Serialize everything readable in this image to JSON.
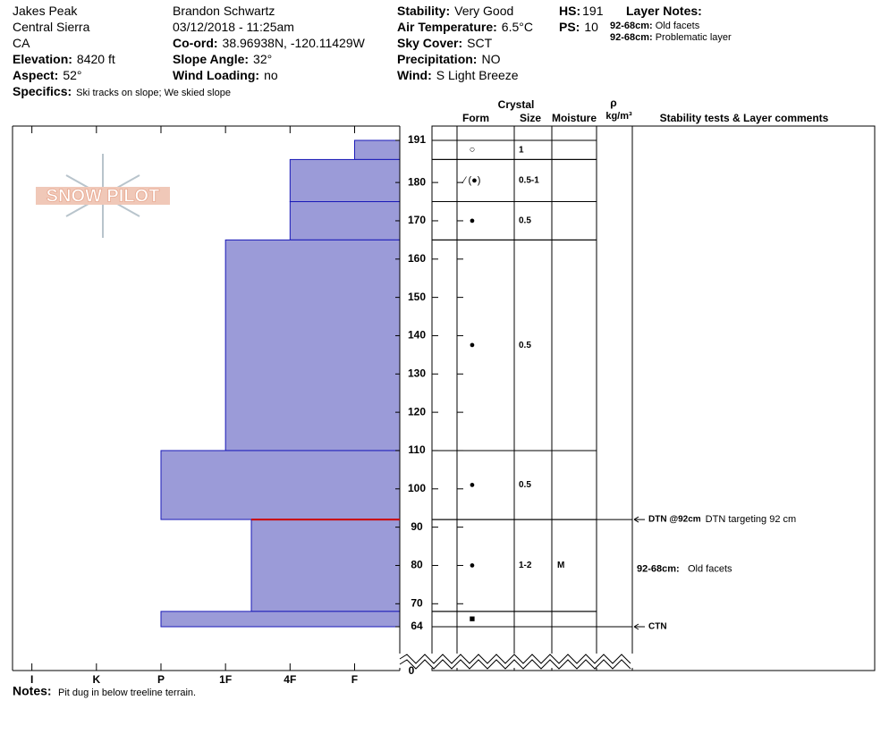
{
  "header": {
    "location": [
      "Jakes Peak",
      "Central Sierra",
      "CA"
    ],
    "elevation": {
      "label": "Elevation:",
      "value": "8420 ft"
    },
    "aspect": {
      "label": "Aspect:",
      "value": "52°"
    },
    "specifics": {
      "label": "Specifics:",
      "value": "Ski tracks on slope; We skied slope"
    },
    "observer": "Brandon Schwartz",
    "datetime": "03/12/2018 - 11:25am",
    "coord": {
      "label": "Co-ord:",
      "value": "38.96938N, -120.11429W"
    },
    "slope_angle": {
      "label": "Slope Angle:",
      "value": "32°"
    },
    "wind_loading": {
      "label": "Wind Loading:",
      "value": "no"
    },
    "stability": {
      "label": "Stability:",
      "value": "Very Good"
    },
    "air_temperature": {
      "label": "Air Temperature:",
      "value": "6.5°C"
    },
    "sky_cover": {
      "label": "Sky Cover:",
      "value": "SCT"
    },
    "precipitation": {
      "label": "Precipitation:",
      "value": "NO"
    },
    "wind": {
      "label": "Wind:",
      "value": "S Light Breeze"
    },
    "hs": {
      "label": "HS:",
      "value": "191"
    },
    "ps": {
      "label": "PS:",
      "value": "10"
    },
    "layer_notes": {
      "title": "Layer Notes:",
      "items": [
        {
          "label": "92-68cm:",
          "text": "Old facets"
        },
        {
          "label": "92-68cm:",
          "text": "Problematic layer"
        }
      ]
    }
  },
  "logo": "SNOW PILOT",
  "chart_data": {
    "type": "snow-profile",
    "ylim": [
      64,
      191
    ],
    "yticks": [
      64,
      70,
      80,
      90,
      100,
      110,
      120,
      130,
      140,
      150,
      160,
      170,
      180,
      191
    ],
    "axis_break_tick": 0,
    "xlim": [
      6.3,
      0.3
    ],
    "xticks": [
      {
        "value": 6,
        "label": "I"
      },
      {
        "value": 5,
        "label": "K"
      },
      {
        "value": 4,
        "label": "P"
      },
      {
        "value": 3,
        "label": "1F"
      },
      {
        "value": 2,
        "label": "4F"
      },
      {
        "value": 1,
        "label": "F"
      }
    ],
    "color": "#9b9bd8",
    "edge_color": "#1a1ab8",
    "failure": {
      "depth": 92,
      "color": "#cc0000"
    },
    "columns": {
      "crystal": "Crystal",
      "form": "Form",
      "size": "Size",
      "moisture": "Moisture",
      "rho": "ρ",
      "density_unit": "kg/m³",
      "comments": "Stability tests & Layer comments"
    },
    "layers": [
      {
        "top": 191,
        "bottom": 186,
        "hardness": 1,
        "form": "○",
        "size": "1"
      },
      {
        "top": 186,
        "bottom": 175,
        "hardness": 2,
        "form": "⁄ (●)",
        "size": "0.5-1"
      },
      {
        "top": 175,
        "bottom": 165,
        "hardness": 2,
        "form": "●",
        "size": "0.5"
      },
      {
        "top": 165,
        "bottom": 110,
        "hardness": 3,
        "form": "●",
        "size": "0.5"
      },
      {
        "top": 110,
        "bottom": 92,
        "hardness": 4,
        "form": "●",
        "size": "0.5"
      },
      {
        "top": 92,
        "bottom": 68,
        "hardness": 2.6,
        "form": "●",
        "size": "1-2",
        "moisture": "M",
        "comment": {
          "label": "92-68cm:",
          "text": "Old facets"
        }
      },
      {
        "top": 68,
        "bottom": 64,
        "hardness": 4,
        "form": "■"
      }
    ],
    "tests": [
      {
        "depth": 92,
        "label": "DTN @92cm",
        "text": "DTN targeting 92 cm"
      },
      {
        "depth": 64,
        "label": "CTN"
      }
    ],
    "notes": {
      "label": "Notes:",
      "text": "Pit dug in below treeline terrain."
    }
  }
}
